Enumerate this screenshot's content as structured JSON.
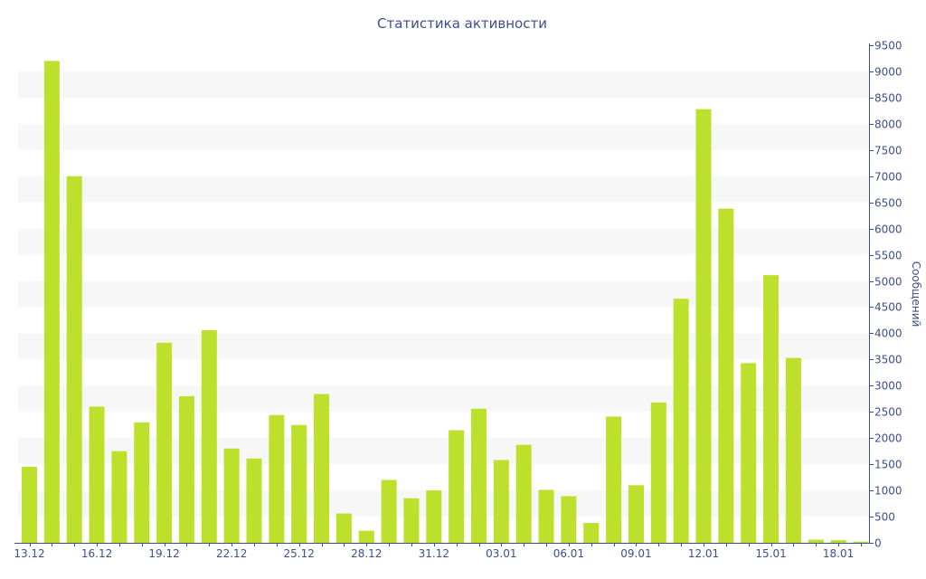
{
  "chart_data": {
    "type": "bar",
    "title": "Статистика активности",
    "xlabel": "",
    "ylabel": "Сообщений",
    "ylim": [
      0,
      9500
    ],
    "y_axis_side": "right",
    "y_ticks": [
      0,
      500,
      1000,
      1500,
      2000,
      2500,
      3000,
      3500,
      4000,
      4500,
      5000,
      5500,
      6000,
      6500,
      7000,
      7500,
      8000,
      8500,
      9000,
      9500
    ],
    "categories": [
      "13.12",
      "14.12",
      "15.12",
      "16.12",
      "17.12",
      "18.12",
      "19.12",
      "20.12",
      "21.12",
      "22.12",
      "23.12",
      "24.12",
      "25.12",
      "26.12",
      "27.12",
      "28.12",
      "29.12",
      "30.12",
      "31.12",
      "01.01",
      "02.01",
      "03.01",
      "04.01",
      "05.01",
      "06.01",
      "07.01",
      "08.01",
      "09.01",
      "10.01",
      "11.01",
      "12.01",
      "13.01",
      "14.01",
      "15.01",
      "16.01",
      "17.01",
      "18.01",
      "19.01"
    ],
    "x_tick_labels": [
      "13.12",
      "16.12",
      "19.12",
      "22.12",
      "25.12",
      "28.12",
      "31.12",
      "03.01",
      "06.01",
      "09.01",
      "12.01",
      "15.01",
      "18.01"
    ],
    "series": [
      {
        "values": [
          1450,
          9200,
          7000,
          2600,
          1750,
          2300,
          3820,
          2800,
          4060,
          1800,
          1610,
          2440,
          2250,
          2840,
          560,
          230,
          1200,
          850,
          1000,
          2150,
          2560,
          1580,
          1870,
          1010,
          890,
          380,
          2410,
          1100,
          2680,
          4660,
          8280,
          6380,
          3430,
          5110,
          3530,
          60,
          50,
          20
        ]
      }
    ],
    "bar_color": "#bce02c",
    "grid": "alternating horizontal bands",
    "band_color": "#f7f7f7",
    "axis_color": "#3b4f8c"
  }
}
